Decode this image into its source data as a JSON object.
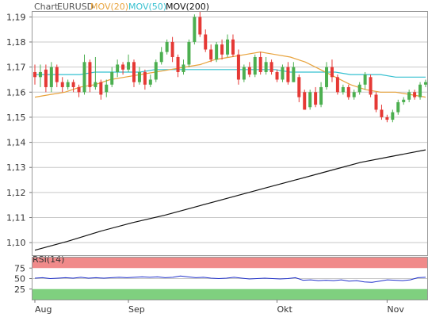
{
  "chart_data": {
    "type": "candlestick",
    "legend": {
      "prefix": "Chart",
      "symbol": "EURUSD",
      "items": [
        {
          "label": "MOV(20)",
          "color": "#e8a33c"
        },
        {
          "label": "MOV(50)",
          "color": "#35c0d0"
        },
        {
          "label": "MOV(200)",
          "color": "#111111"
        }
      ]
    },
    "colors": {
      "up": "#4caf50",
      "down": "#e53935",
      "grid": "#c8c8c8",
      "frame": "#9a9a9a",
      "rsi_line": "#2233cc",
      "rsi_overbought": "#f08a8a",
      "rsi_oversold": "#7fd07f"
    },
    "grid": true,
    "main": {
      "ylim": [
        1.095,
        1.192
      ],
      "y_ticks": [
        1.1,
        1.11,
        1.12,
        1.13,
        1.14,
        1.15,
        1.16,
        1.17,
        1.18,
        1.19
      ],
      "y_tick_labels": [
        "1,10",
        "1,11",
        "1,12",
        "1,13",
        "1,14",
        "1,15",
        "1,16",
        "1,17",
        "1,18",
        "1,19"
      ],
      "candles": [
        [
          1.168,
          1.166,
          1.171,
          1.163
        ],
        [
          1.166,
          1.168,
          1.171,
          1.162
        ],
        [
          1.169,
          1.162,
          1.171,
          1.16
        ],
        [
          1.162,
          1.17,
          1.172,
          1.16
        ],
        [
          1.17,
          1.164,
          1.171,
          1.162
        ],
        [
          1.164,
          1.162,
          1.166,
          1.16
        ],
        [
          1.162,
          1.164,
          1.165,
          1.161
        ],
        [
          1.164,
          1.162,
          1.165,
          1.16
        ],
        [
          1.162,
          1.16,
          1.163,
          1.158
        ],
        [
          1.16,
          1.172,
          1.175,
          1.159
        ],
        [
          1.172,
          1.162,
          1.173,
          1.16
        ],
        [
          1.162,
          1.164,
          1.174,
          1.161
        ],
        [
          1.164,
          1.159,
          1.165,
          1.157
        ],
        [
          1.16,
          1.163,
          1.165,
          1.158
        ],
        [
          1.163,
          1.168,
          1.17,
          1.162
        ],
        [
          1.168,
          1.171,
          1.173,
          1.166
        ],
        [
          1.171,
          1.169,
          1.172,
          1.167
        ],
        [
          1.169,
          1.172,
          1.175,
          1.168
        ],
        [
          1.172,
          1.164,
          1.173,
          1.162
        ],
        [
          1.164,
          1.168,
          1.17,
          1.163
        ],
        [
          1.168,
          1.163,
          1.169,
          1.161
        ],
        [
          1.163,
          1.165,
          1.167,
          1.162
        ],
        [
          1.165,
          1.172,
          1.173,
          1.164
        ],
        [
          1.172,
          1.176,
          1.178,
          1.171
        ],
        [
          1.176,
          1.18,
          1.181,
          1.175
        ],
        [
          1.18,
          1.174,
          1.182,
          1.172
        ],
        [
          1.174,
          1.168,
          1.175,
          1.166
        ],
        [
          1.168,
          1.171,
          1.173,
          1.167
        ],
        [
          1.171,
          1.18,
          1.181,
          1.17
        ],
        [
          1.18,
          1.19,
          1.191,
          1.179
        ],
        [
          1.19,
          1.183,
          1.192,
          1.182
        ],
        [
          1.183,
          1.177,
          1.185,
          1.176
        ],
        [
          1.177,
          1.173,
          1.179,
          1.172
        ],
        [
          1.173,
          1.179,
          1.18,
          1.172
        ],
        [
          1.179,
          1.175,
          1.181,
          1.173
        ],
        [
          1.175,
          1.181,
          1.183,
          1.174
        ],
        [
          1.181,
          1.175,
          1.183,
          1.174
        ],
        [
          1.175,
          1.165,
          1.177,
          1.163
        ],
        [
          1.165,
          1.17,
          1.171,
          1.164
        ],
        [
          1.17,
          1.167,
          1.172,
          1.166
        ],
        [
          1.167,
          1.174,
          1.175,
          1.166
        ],
        [
          1.174,
          1.168,
          1.176,
          1.167
        ],
        [
          1.168,
          1.172,
          1.174,
          1.167
        ],
        [
          1.172,
          1.168,
          1.173,
          1.167
        ],
        [
          1.168,
          1.165,
          1.169,
          1.164
        ],
        [
          1.165,
          1.17,
          1.171,
          1.164
        ],
        [
          1.17,
          1.164,
          1.172,
          1.163
        ],
        [
          1.164,
          1.17,
          1.172,
          1.164
        ],
        [
          1.166,
          1.158,
          1.167,
          1.156
        ],
        [
          1.16,
          1.153,
          1.161,
          1.153
        ],
        [
          1.154,
          1.16,
          1.161,
          1.153
        ],
        [
          1.16,
          1.155,
          1.162,
          1.154
        ],
        [
          1.155,
          1.162,
          1.164,
          1.154
        ],
        [
          1.162,
          1.17,
          1.172,
          1.161
        ],
        [
          1.17,
          1.166,
          1.173,
          1.164
        ],
        [
          1.166,
          1.16,
          1.167,
          1.159
        ],
        [
          1.16,
          1.162,
          1.163,
          1.159
        ],
        [
          1.162,
          1.158,
          1.163,
          1.157
        ],
        [
          1.158,
          1.16,
          1.161,
          1.157
        ],
        [
          1.16,
          1.163,
          1.164,
          1.159
        ],
        [
          1.163,
          1.167,
          1.168,
          1.161
        ],
        [
          1.166,
          1.159,
          1.167,
          1.158
        ],
        [
          1.159,
          1.153,
          1.16,
          1.152
        ],
        [
          1.153,
          1.15,
          1.155,
          1.149
        ],
        [
          1.15,
          1.149,
          1.151,
          1.148
        ],
        [
          1.149,
          1.152,
          1.153,
          1.148
        ],
        [
          1.152,
          1.156,
          1.157,
          1.151
        ],
        [
          1.156,
          1.157,
          1.158,
          1.155
        ],
        [
          1.157,
          1.16,
          1.161,
          1.156
        ],
        [
          1.16,
          1.158,
          1.161,
          1.157
        ],
        [
          1.158,
          1.163,
          1.164,
          1.157
        ],
        [
          1.163,
          1.164,
          1.165,
          1.162
        ]
      ],
      "ma20": [
        1.158,
        1.159,
        1.16,
        1.162,
        1.163,
        1.165,
        1.166,
        1.167,
        1.168,
        1.169,
        1.17,
        1.171,
        1.173,
        1.174,
        1.175,
        1.176,
        1.175,
        1.174,
        1.172,
        1.169,
        1.166,
        1.163,
        1.161,
        1.16,
        1.16,
        1.159,
        1.158
      ],
      "ma50": [
        1.167,
        1.167,
        1.167,
        1.167,
        1.168,
        1.168,
        1.168,
        1.168,
        1.169,
        1.169,
        1.169,
        1.169,
        1.169,
        1.169,
        1.169,
        1.169,
        1.169,
        1.168,
        1.168,
        1.168,
        1.168,
        1.167,
        1.167,
        1.167,
        1.166,
        1.166,
        1.166
      ],
      "ma200": [
        1.097,
        1.1005,
        1.1045,
        1.108,
        1.111,
        1.1145,
        1.118,
        1.1215,
        1.125,
        1.1285,
        1.132,
        1.1345,
        1.137
      ]
    },
    "rsi": {
      "label": "RSI(14)",
      "range": [
        0,
        100
      ],
      "y_ticks": [
        25,
        50,
        75
      ],
      "y_tick_labels": [
        "25",
        "50",
        "75"
      ],
      "overbought": 75,
      "oversold": 25,
      "values": [
        51,
        52,
        50,
        51,
        52,
        51,
        53,
        51,
        52,
        51,
        52,
        53,
        52,
        53,
        54,
        53,
        54,
        52,
        53,
        56,
        54,
        52,
        53,
        51,
        50,
        51,
        53,
        51,
        49,
        50,
        51,
        50,
        49,
        50,
        52,
        46,
        47,
        45,
        46,
        45,
        47,
        44,
        45,
        42,
        41,
        44,
        47,
        46,
        45,
        47,
        52,
        53
      ]
    },
    "x_labels": [
      {
        "label": "Aug",
        "index": 0
      },
      {
        "label": "Sep",
        "index": 17
      },
      {
        "label": "Okt",
        "index": 44
      },
      {
        "label": "Nov",
        "index": 64
      }
    ]
  }
}
